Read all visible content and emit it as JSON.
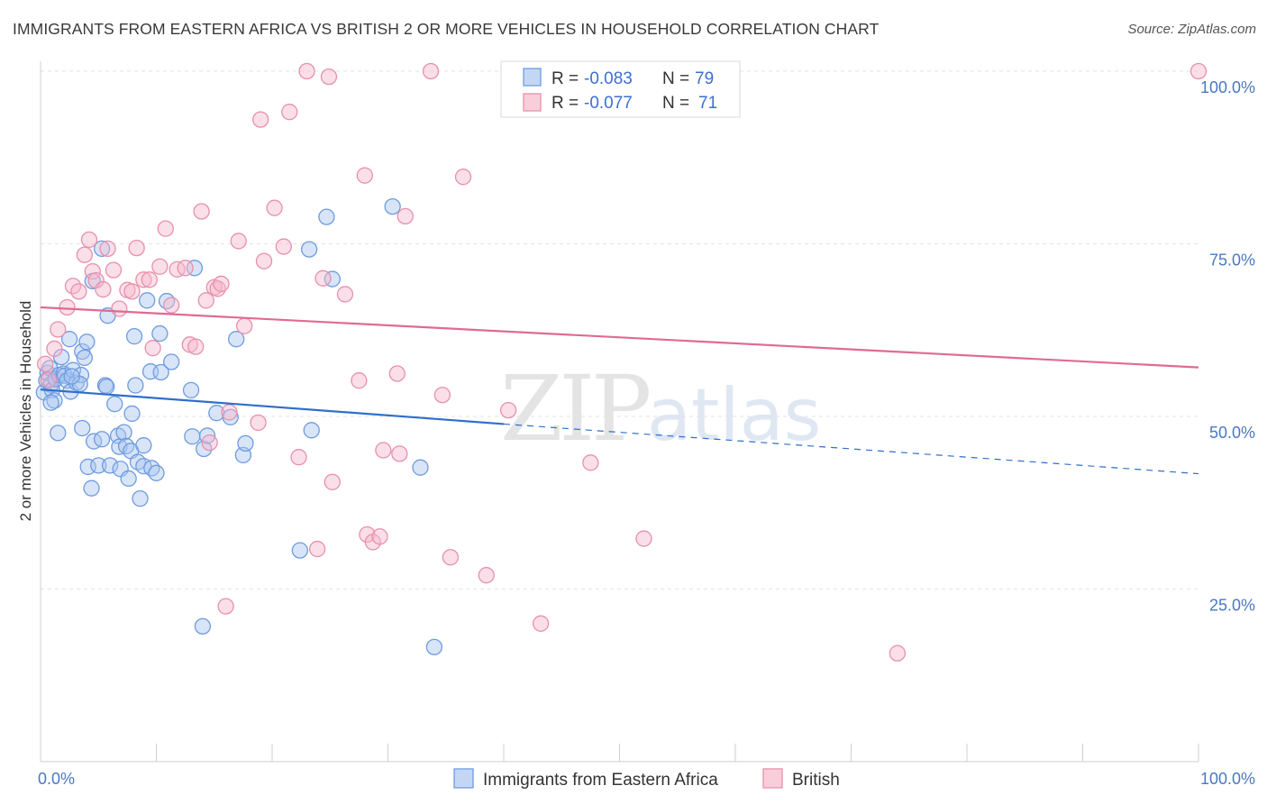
{
  "title": "IMMIGRANTS FROM EASTERN AFRICA VS BRITISH 2 OR MORE VEHICLES IN HOUSEHOLD CORRELATION CHART",
  "source": "Source: ZipAtlas.com",
  "watermark": {
    "zip": "ZIP",
    "atlas": "atlas"
  },
  "colors": {
    "blue_fill": "#a9c6f0",
    "blue_stroke": "#6f9be0",
    "blue_line": "#2f6fcc",
    "pink_fill": "#f6b9cc",
    "pink_stroke": "#e890ab",
    "pink_line": "#e06a94",
    "grid": "#e3e3e3",
    "tick_text": "#4a78c2"
  },
  "legend": {
    "blue": {
      "r_label": "R = ",
      "r_value": "-0.083",
      "n_label": "N = ",
      "n_value": "79"
    },
    "pink": {
      "r_label": "R = ",
      "r_value": "-0.077",
      "n_label": "N = ",
      "n_value": "71"
    }
  },
  "chart_data": {
    "type": "scatter",
    "title": "IMMIGRANTS FROM EASTERN AFRICA VS BRITISH 2 OR MORE VEHICLES IN HOUSEHOLD CORRELATION CHART",
    "xlabel": "",
    "ylabel": "2 or more Vehicles in Household",
    "xlim": [
      0,
      100
    ],
    "ylim": [
      0,
      100
    ],
    "x_tick_labels": [
      {
        "value": 0,
        "label": "0.0%"
      },
      {
        "value": 100,
        "label": "100.0%"
      }
    ],
    "y_tick_labels": [
      {
        "value": 100,
        "label": "100.0%"
      },
      {
        "value": 75,
        "label": "75.0%"
      },
      {
        "value": 50,
        "label": "50.0%"
      },
      {
        "value": 25,
        "label": "25.0%"
      }
    ],
    "grid": true,
    "legend_position": "top-center",
    "series": [
      {
        "name": "Immigrants from Eastern Africa",
        "color": "blue",
        "r": -0.083,
        "n": 79,
        "trend": {
          "x0": 0,
          "y0": 53.9,
          "x1": 40,
          "y1": 48.9,
          "x_dashed_end": 100,
          "y_dashed_end": 41.7
        },
        "points": [
          [
            0.3,
            53.5
          ],
          [
            0.5,
            55.2
          ],
          [
            0.6,
            56.3
          ],
          [
            0.8,
            57.0
          ],
          [
            0.9,
            54.6
          ],
          [
            1.0,
            53.8
          ],
          [
            1.2,
            52.3
          ],
          [
            1.3,
            55.4
          ],
          [
            1.5,
            47.6
          ],
          [
            1.6,
            56.0
          ],
          [
            2.0,
            56.2
          ],
          [
            2.1,
            55.9
          ],
          [
            2.3,
            55.2
          ],
          [
            2.5,
            61.2
          ],
          [
            2.6,
            53.6
          ],
          [
            2.8,
            56.7
          ],
          [
            3.1,
            54.9
          ],
          [
            3.5,
            56.0
          ],
          [
            3.6,
            59.4
          ],
          [
            3.6,
            48.3
          ],
          [
            3.8,
            58.5
          ],
          [
            4.0,
            60.8
          ],
          [
            4.1,
            42.7
          ],
          [
            4.4,
            39.6
          ],
          [
            4.5,
            69.6
          ],
          [
            4.6,
            46.4
          ],
          [
            5.0,
            42.9
          ],
          [
            5.3,
            74.3
          ],
          [
            5.3,
            46.7
          ],
          [
            5.6,
            54.5
          ],
          [
            5.7,
            54.3
          ],
          [
            5.8,
            64.6
          ],
          [
            6.0,
            42.9
          ],
          [
            6.4,
            51.8
          ],
          [
            6.7,
            47.2
          ],
          [
            6.8,
            45.6
          ],
          [
            6.9,
            42.4
          ],
          [
            7.2,
            47.7
          ],
          [
            7.4,
            45.7
          ],
          [
            7.6,
            41.0
          ],
          [
            7.8,
            45.0
          ],
          [
            7.9,
            50.4
          ],
          [
            8.1,
            61.6
          ],
          [
            8.2,
            54.5
          ],
          [
            8.4,
            43.4
          ],
          [
            8.6,
            38.1
          ],
          [
            8.9,
            42.8
          ],
          [
            8.9,
            45.8
          ],
          [
            9.2,
            66.8
          ],
          [
            9.5,
            56.5
          ],
          [
            9.6,
            42.5
          ],
          [
            10.0,
            41.8
          ],
          [
            10.3,
            62.0
          ],
          [
            10.4,
            56.4
          ],
          [
            10.9,
            66.7
          ],
          [
            11.3,
            57.9
          ],
          [
            13.0,
            53.8
          ],
          [
            13.1,
            47.1
          ],
          [
            13.3,
            71.5
          ],
          [
            14.0,
            19.6
          ],
          [
            14.1,
            45.3
          ],
          [
            14.4,
            47.2
          ],
          [
            15.2,
            50.5
          ],
          [
            16.4,
            49.9
          ],
          [
            16.9,
            61.2
          ],
          [
            17.5,
            44.4
          ],
          [
            17.7,
            46.1
          ],
          [
            22.4,
            30.6
          ],
          [
            23.2,
            74.2
          ],
          [
            23.4,
            48.0
          ],
          [
            24.7,
            78.9
          ],
          [
            25.2,
            69.9
          ],
          [
            30.4,
            80.4
          ],
          [
            32.8,
            42.6
          ],
          [
            34.0,
            16.6
          ],
          [
            0.9,
            52.0
          ],
          [
            1.8,
            58.6
          ],
          [
            3.4,
            54.7
          ],
          [
            2.7,
            55.8
          ]
        ]
      },
      {
        "name": "British",
        "color": "pink",
        "r": -0.077,
        "n": 71,
        "trend": {
          "x0": 0,
          "y0": 65.8,
          "x1": 100,
          "y1": 57.1
        },
        "points": [
          [
            0.4,
            57.6
          ],
          [
            0.7,
            55.3
          ],
          [
            1.2,
            59.8
          ],
          [
            1.5,
            62.6
          ],
          [
            2.3,
            65.8
          ],
          [
            2.8,
            68.9
          ],
          [
            3.3,
            68.1
          ],
          [
            3.8,
            73.4
          ],
          [
            4.2,
            75.6
          ],
          [
            4.5,
            71.0
          ],
          [
            4.8,
            69.7
          ],
          [
            5.4,
            68.4
          ],
          [
            5.8,
            74.3
          ],
          [
            6.3,
            71.2
          ],
          [
            6.8,
            65.6
          ],
          [
            7.5,
            68.3
          ],
          [
            7.9,
            68.1
          ],
          [
            8.3,
            74.4
          ],
          [
            8.9,
            69.8
          ],
          [
            9.4,
            69.8
          ],
          [
            9.7,
            59.9
          ],
          [
            10.3,
            71.7
          ],
          [
            10.8,
            77.2
          ],
          [
            11.3,
            66.1
          ],
          [
            11.8,
            71.3
          ],
          [
            12.5,
            71.5
          ],
          [
            12.9,
            60.4
          ],
          [
            13.4,
            60.1
          ],
          [
            13.9,
            79.7
          ],
          [
            14.3,
            66.8
          ],
          [
            14.6,
            46.2
          ],
          [
            15.0,
            68.7
          ],
          [
            15.3,
            68.5
          ],
          [
            15.6,
            69.2
          ],
          [
            16.3,
            50.6
          ],
          [
            17.1,
            75.4
          ],
          [
            17.6,
            63.1
          ],
          [
            18.8,
            49.1
          ],
          [
            19.3,
            72.5
          ],
          [
            20.2,
            80.2
          ],
          [
            21.0,
            74.6
          ],
          [
            21.5,
            94.1
          ],
          [
            22.3,
            44.1
          ],
          [
            23.0,
            100.0
          ],
          [
            23.9,
            30.8
          ],
          [
            24.4,
            70.0
          ],
          [
            24.9,
            99.2
          ],
          [
            25.2,
            40.5
          ],
          [
            26.3,
            67.7
          ],
          [
            27.5,
            55.2
          ],
          [
            28.0,
            84.9
          ],
          [
            28.2,
            32.9
          ],
          [
            28.7,
            31.8
          ],
          [
            29.3,
            32.6
          ],
          [
            29.6,
            45.1
          ],
          [
            30.8,
            56.2
          ],
          [
            31.0,
            44.6
          ],
          [
            31.5,
            79.0
          ],
          [
            33.7,
            100.0
          ],
          [
            34.7,
            53.1
          ],
          [
            35.4,
            29.6
          ],
          [
            36.5,
            84.7
          ],
          [
            40.4,
            50.9
          ],
          [
            43.2,
            20.0
          ],
          [
            47.5,
            43.3
          ],
          [
            52.1,
            32.3
          ],
          [
            74.0,
            15.7
          ],
          [
            100.0,
            100.0
          ],
          [
            19.0,
            93.0
          ],
          [
            16.0,
            22.5
          ],
          [
            38.5,
            27.0
          ]
        ]
      }
    ]
  },
  "bottom_legend": {
    "blue_label": "Immigrants from Eastern Africa",
    "pink_label": "British"
  }
}
